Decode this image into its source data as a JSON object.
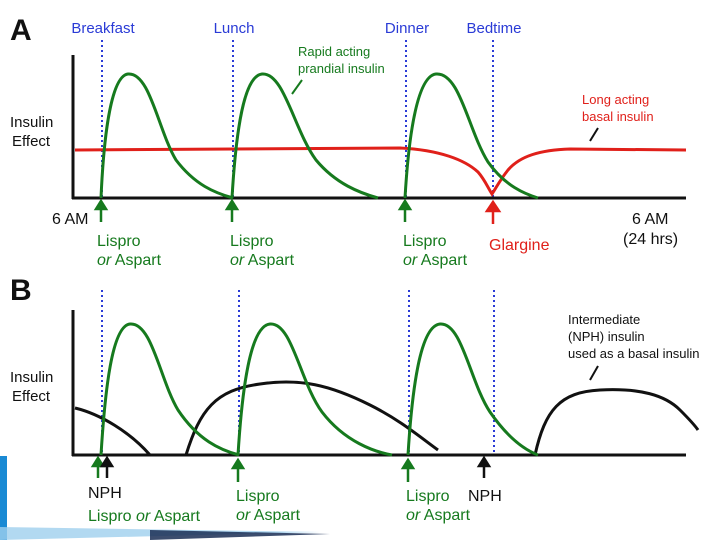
{
  "colors": {
    "green": "#167a1e",
    "red": "#e0201a",
    "black": "#111111",
    "blue_dash": "#2a3bd6",
    "axis": "#111111",
    "accent_blue": "#1a8ad4"
  },
  "panel_a": {
    "letter": "A",
    "meals": [
      "Breakfast",
      "Lunch",
      "Dinner",
      "Bedtime"
    ],
    "ylabel_line1": "Insulin",
    "ylabel_line2": "Effect",
    "rapid_label_line1": "Rapid acting",
    "rapid_label_line2": "prandial insulin",
    "long_label_line1": "Long acting",
    "long_label_line2": "basal insulin",
    "x_start": "6 AM",
    "x_end_line1": "6 AM",
    "x_end_line2": "(24 hrs)",
    "doses": [
      {
        "line1": "Lispro",
        "line2": "or Aspart"
      },
      {
        "line1": "Lispro",
        "line2": "or Aspart"
      },
      {
        "line1": "Lispro",
        "line2": "or Aspart"
      }
    ],
    "glargine": "Glargine"
  },
  "panel_b": {
    "letter": "B",
    "ylabel_line1": "Insulin",
    "ylabel_line2": "Effect",
    "nph_label_line1": "Intermediate",
    "nph_label_line2": "(NPH) insulin",
    "nph_label_line3": "used as a basal insulin",
    "nph_1": "NPH",
    "dose_1": "Lispro or Aspart",
    "doses": [
      {
        "line1": "Lispro",
        "line2": "or Aspart"
      },
      {
        "line1": "Lispro",
        "line2": "or Aspart"
      }
    ],
    "nph_2": "NPH"
  }
}
